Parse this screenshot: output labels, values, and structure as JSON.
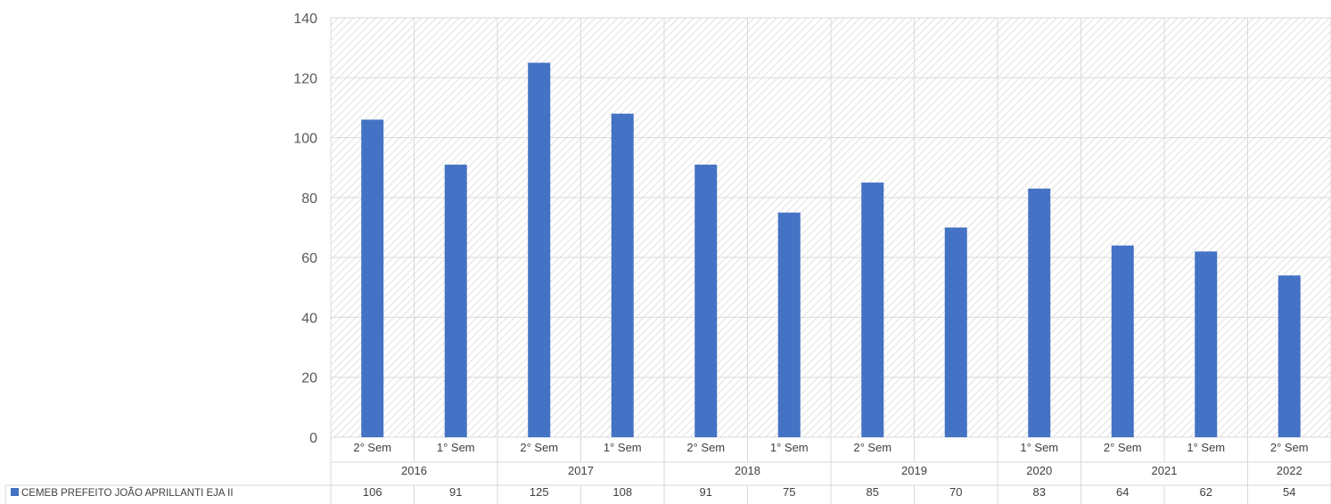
{
  "chart_data": {
    "type": "bar",
    "title": "",
    "xlabel": "",
    "ylabel": "",
    "ylim": [
      0,
      140
    ],
    "yticks": [
      0,
      20,
      40,
      60,
      80,
      100,
      120,
      140
    ],
    "grid": true,
    "legend_position": "bottom-left, inside data table",
    "bar_color": "#4472C4",
    "plot_background": "diagonal hatch, light gray",
    "categories": [
      "2° Sem",
      "1° Sem",
      "2° Sem",
      "1° Sem",
      "2° Sem",
      "1° Sem",
      "2° Sem",
      "",
      "1° Sem",
      "2° Sem",
      "1° Sem",
      "2° Sem"
    ],
    "year_groups": [
      {
        "label": "2016",
        "count": 2
      },
      {
        "label": "2017",
        "count": 2
      },
      {
        "label": "2018",
        "count": 2
      },
      {
        "label": "2019",
        "count": 2
      },
      {
        "label": "2020",
        "count": 1
      },
      {
        "label": "2021",
        "count": 2
      },
      {
        "label": "2022",
        "count": 1
      }
    ],
    "series": [
      {
        "name": "CEMEB PREFEITO JOÃO APRILLANTI EJA II",
        "values": [
          106,
          91,
          125,
          108,
          91,
          75,
          85,
          70,
          83,
          64,
          62,
          54
        ]
      }
    ]
  }
}
